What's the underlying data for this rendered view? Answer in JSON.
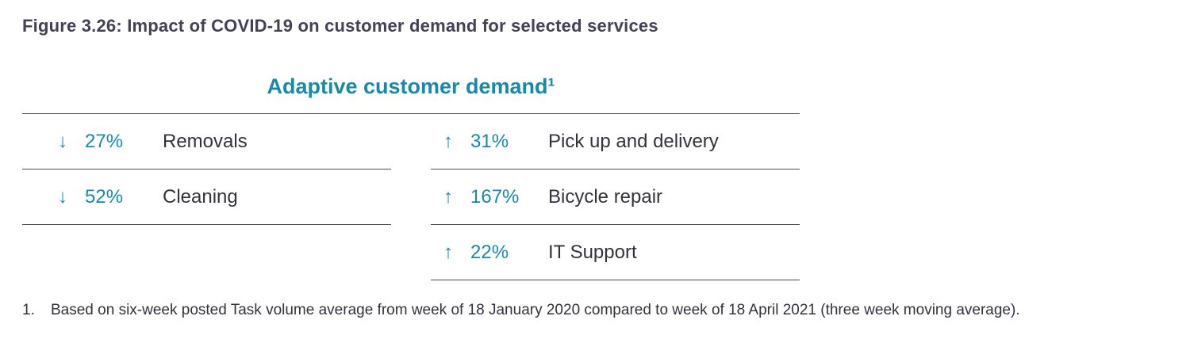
{
  "figure": {
    "title": "Figure 3.26: Impact of COVID-19 on customer demand for selected services"
  },
  "table": {
    "heading": "Adaptive customer demand¹",
    "left_rows": [
      {
        "arrow": "↓",
        "direction": "down",
        "pct": "27%",
        "label": "Removals"
      },
      {
        "arrow": "↓",
        "direction": "down",
        "pct": "52%",
        "label": "Cleaning"
      }
    ],
    "right_rows": [
      {
        "arrow": "↑",
        "direction": "up",
        "pct": "31%",
        "label": "Pick up and delivery"
      },
      {
        "arrow": "↑",
        "direction": "up",
        "pct": "167%",
        "label": "Bicycle repair"
      },
      {
        "arrow": "↑",
        "direction": "up",
        "pct": "22%",
        "label": "IT Support"
      }
    ]
  },
  "footnote": {
    "marker": "1.",
    "text": "Based on six-week posted Task volume average from week of 18 January 2020 compared to week of 18 April 2021 (three week moving average)."
  },
  "colors": {
    "accent_teal": "#1789a9",
    "title_purple": "#454056",
    "text_dark": "#32323c",
    "rule_gray": "#4b4b55"
  },
  "chart_data": {
    "type": "table",
    "title": "Adaptive customer demand",
    "footnote": "Based on six-week posted Task volume average from week of 18 January 2020 compared to week of 18 April 2021 (three week moving average).",
    "series": [
      {
        "name": "Removals",
        "change_percent": -27
      },
      {
        "name": "Cleaning",
        "change_percent": -52
      },
      {
        "name": "Pick up and delivery",
        "change_percent": 31
      },
      {
        "name": "Bicycle repair",
        "change_percent": 167
      },
      {
        "name": "IT Support",
        "change_percent": 22
      }
    ]
  }
}
